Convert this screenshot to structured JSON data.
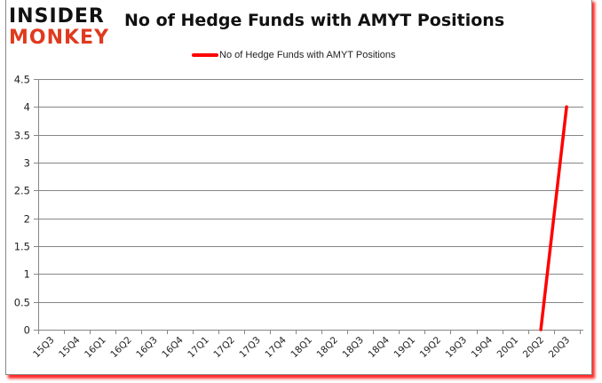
{
  "logo": {
    "line1": "INSIDER",
    "line2": "MONKEY"
  },
  "chart_data": {
    "type": "line",
    "title": "No of Hedge Funds with AMYT Positions",
    "xlabel": "",
    "ylabel": "",
    "ylim": [
      0,
      4.5
    ],
    "yticks": [
      "0",
      "0.5",
      "1",
      "1.5",
      "2",
      "2.5",
      "3",
      "3.5",
      "4",
      "4.5"
    ],
    "grid": true,
    "legend_position": "top",
    "categories": [
      "15Q3",
      "15Q4",
      "16Q1",
      "16Q2",
      "16Q3",
      "16Q4",
      "17Q1",
      "17Q2",
      "17Q3",
      "17Q4",
      "18Q1",
      "18Q2",
      "18Q3",
      "18Q4",
      "19Q1",
      "19Q2",
      "19Q3",
      "19Q4",
      "20Q1",
      "20Q2",
      "20Q3"
    ],
    "series": [
      {
        "name": "No of Hedge Funds with AMYT Positions",
        "color": "#ff0000",
        "values": [
          null,
          null,
          null,
          null,
          null,
          null,
          null,
          null,
          null,
          null,
          null,
          null,
          null,
          null,
          null,
          null,
          null,
          null,
          null,
          0,
          4
        ]
      }
    ]
  },
  "legend": {
    "label": "No of Hedge Funds with AMYT Positions"
  },
  "colors": {
    "series": "#ff0000",
    "grid": "#868686",
    "frame_shadow": "#ff0000"
  }
}
